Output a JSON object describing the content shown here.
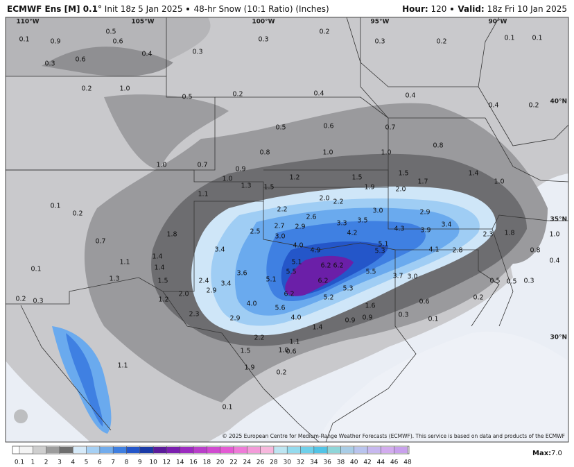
{
  "header": {
    "model": "ECMWF Ens [M] 0.1°",
    "init": "Init 18z 5 Jan 2025",
    "field": "48-hr Snow (10:1 Ratio) (Inches)",
    "hour_label": "Hour:",
    "hour": "120",
    "valid_label": "Valid:",
    "valid": "18z Fri 10 Jan 2025"
  },
  "map": {
    "longitudes": [
      "110°W",
      "105°W",
      "100°W",
      "95°W",
      "90°W"
    ],
    "latitudes": [
      "40°N",
      "35°N",
      "30°N"
    ],
    "labels": [
      "0.1",
      "0.9",
      "0.5",
      "0.6",
      "0.3",
      "0.6",
      "0.4",
      "0.3",
      "0.3",
      "0.2",
      "0.3",
      "0.2",
      "0.1",
      "0.1",
      "0.2",
      "1.0",
      "0.5",
      "0.2",
      "0.4",
      "0.4",
      "0.4",
      "0.2",
      "0.5",
      "0.6",
      "0.7",
      "0.8",
      "0.8",
      "1.0",
      "1.0",
      "1.0",
      "0.7",
      "0.9",
      "1.2",
      "1.5",
      "1.5",
      "1.4",
      "1.7",
      "1.0",
      "1.0",
      "1.3",
      "1.5",
      "1.1",
      "1.9",
      "2.0",
      "2.0",
      "2.2",
      "2.2",
      "3.0",
      "2.9",
      "2.6",
      "3.3",
      "3.5",
      "3.4",
      "4.3",
      "4.2",
      "2.9",
      "2.7",
      "2.5",
      "3.9",
      "2.3",
      "1.8",
      "3.0",
      "4.0",
      "4.9",
      "5.1",
      "5.3",
      "4.1",
      "2.8",
      "3.4",
      "1.8",
      "6.2",
      "6.2",
      "5.1",
      "5.5",
      "5.5",
      "6.2",
      "3.7",
      "3.0",
      "3.6",
      "2.4",
      "5.1",
      "5.3",
      "3.4",
      "2.9",
      "6.2",
      "5.2",
      "4.0",
      "5.6",
      "1.6",
      "1.2",
      "2.3",
      "2.9",
      "4.0",
      "1.4",
      "0.9",
      "0.9",
      "0.3",
      "2.2",
      "1.1",
      "1.0",
      "0.6",
      "1.5",
      "1.9",
      "0.2",
      "0.1",
      "1.1",
      "0.6",
      "0.2",
      "0.5",
      "0.5",
      "0.3",
      "0.4",
      "0.8",
      "1.0",
      "0.1",
      "0.1",
      "0.2",
      "0.3",
      "0.1",
      "0.2",
      "0.7",
      "1.3",
      "1.1",
      "1.4",
      "1.4",
      "1.5",
      "2.0"
    ]
  },
  "copyright": "© 2025 European Centre for Medium-Range Weather Forecasts (ECMWF). This service is based on data and products of the ECMWF",
  "colorbar": {
    "ticks": [
      0.1,
      1,
      2,
      3,
      4,
      5,
      6,
      7,
      8,
      9,
      10,
      12,
      14,
      16,
      18,
      20,
      22,
      24,
      26,
      28,
      30,
      32,
      34,
      36,
      38,
      40,
      42,
      44,
      46,
      48
    ]
  },
  "footer": {
    "max_label": "Max:",
    "max_value": "7.0"
  }
}
